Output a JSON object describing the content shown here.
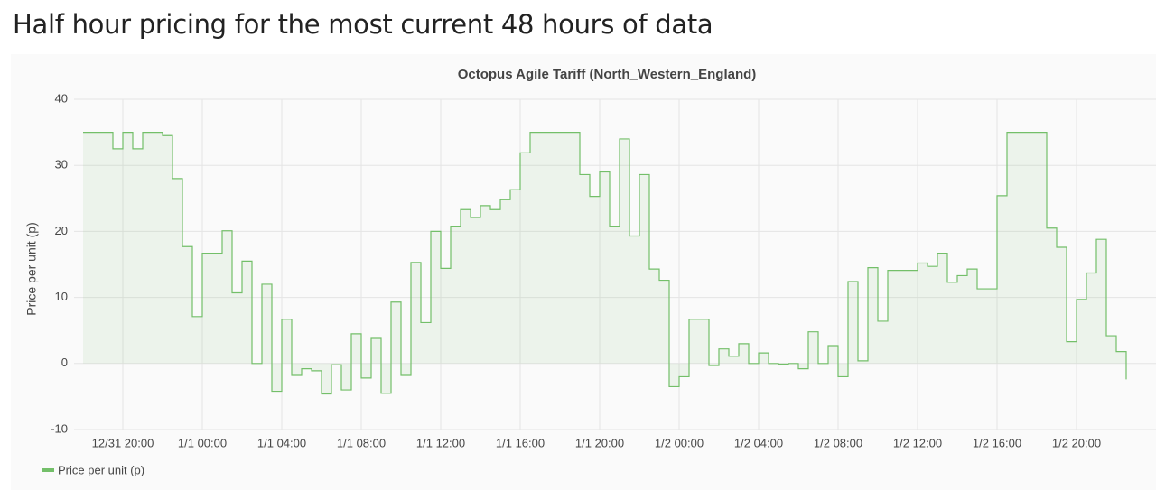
{
  "page_title": "Half hour pricing for the most current 48 hours of data",
  "chart_data": {
    "type": "line",
    "step": true,
    "fill": true,
    "title": "Octopus Agile Tariff (North_Western_England)",
    "y_label": "Price per unit (p)",
    "x": [
      "12/31 18:00",
      "12/31 18:30",
      "12/31 19:00",
      "12/31 19:30",
      "12/31 20:00",
      "12/31 20:30",
      "12/31 21:00",
      "12/31 21:30",
      "12/31 22:00",
      "12/31 22:30",
      "12/31 23:00",
      "12/31 23:30",
      "1/1 00:00",
      "1/1 00:30",
      "1/1 01:00",
      "1/1 01:30",
      "1/1 02:00",
      "1/1 02:30",
      "1/1 03:00",
      "1/1 03:30",
      "1/1 04:00",
      "1/1 04:30",
      "1/1 05:00",
      "1/1 05:30",
      "1/1 06:00",
      "1/1 06:30",
      "1/1 07:00",
      "1/1 07:30",
      "1/1 08:00",
      "1/1 08:30",
      "1/1 09:00",
      "1/1 09:30",
      "1/1 10:00",
      "1/1 10:30",
      "1/1 11:00",
      "1/1 11:30",
      "1/1 12:00",
      "1/1 12:30",
      "1/1 13:00",
      "1/1 13:30",
      "1/1 14:00",
      "1/1 14:30",
      "1/1 15:00",
      "1/1 15:30",
      "1/1 16:00",
      "1/1 16:30",
      "1/1 17:00",
      "1/1 17:30",
      "1/1 18:00",
      "1/1 18:30",
      "1/1 19:00",
      "1/1 19:30",
      "1/1 20:00",
      "1/1 20:30",
      "1/1 21:00",
      "1/1 21:30",
      "1/1 22:00",
      "1/1 22:30",
      "1/1 23:00",
      "1/1 23:30",
      "1/2 00:00",
      "1/2 00:30",
      "1/2 01:00",
      "1/2 01:30",
      "1/2 02:00",
      "1/2 02:30",
      "1/2 03:00",
      "1/2 03:30",
      "1/2 04:00",
      "1/2 04:30",
      "1/2 05:00",
      "1/2 05:30",
      "1/2 06:00",
      "1/2 06:30",
      "1/2 07:00",
      "1/2 07:30",
      "1/2 08:00",
      "1/2 08:30",
      "1/2 09:00",
      "1/2 09:30",
      "1/2 10:00",
      "1/2 10:30",
      "1/2 11:00",
      "1/2 11:30",
      "1/2 12:00",
      "1/2 12:30",
      "1/2 13:00",
      "1/2 13:30",
      "1/2 14:00",
      "1/2 14:30",
      "1/2 15:00",
      "1/2 15:30",
      "1/2 16:00",
      "1/2 16:30",
      "1/2 17:00",
      "1/2 17:30",
      "1/2 18:00",
      "1/2 18:30",
      "1/2 19:00",
      "1/2 19:30",
      "1/2 20:00",
      "1/2 20:30",
      "1/2 21:00",
      "1/2 21:30",
      "1/2 22:00",
      "1/2 22:30"
    ],
    "series": [
      {
        "name": "Price per unit (p)",
        "color": "#73bf69",
        "values": [
          35,
          35,
          35,
          32.5,
          35,
          32.5,
          35,
          35,
          34.5,
          28,
          17.7,
          7.1,
          16.7,
          16.7,
          20.1,
          10.7,
          15.5,
          0,
          12,
          -4.2,
          6.7,
          -1.8,
          -0.8,
          -1.1,
          -4.6,
          -0.2,
          -4,
          4.5,
          -2.2,
          3.8,
          -4.5,
          9.3,
          -1.8,
          15.3,
          6.2,
          20,
          14.4,
          20.8,
          23.3,
          22.1,
          23.9,
          23.3,
          24.8,
          26.3,
          31.9,
          35,
          35,
          35,
          35,
          35,
          28.6,
          25.3,
          29,
          20.8,
          34,
          19.3,
          28.6,
          14.3,
          12.6,
          -3.5,
          -2,
          6.7,
          6.7,
          -0.3,
          2.2,
          1.1,
          3,
          0,
          1.6,
          0,
          -0.1,
          0,
          -0.8,
          4.8,
          0,
          2.7,
          -2,
          12.4,
          0.4,
          14.5,
          6.4,
          14.1,
          14.1,
          14.1,
          15.2,
          14.7,
          16.7,
          12.3,
          13.3,
          14.3,
          11.3,
          11.3,
          25.4,
          35,
          35,
          35,
          35,
          20.5,
          17.6,
          3.3,
          9.7,
          13.7,
          18.8,
          4.2,
          1.8,
          -2.4
        ]
      }
    ],
    "xticks": [
      "12/31 20:00",
      "1/1 00:00",
      "1/1 04:00",
      "1/1 08:00",
      "1/1 12:00",
      "1/1 16:00",
      "1/1 20:00",
      "1/2 00:00",
      "1/2 04:00",
      "1/2 08:00",
      "1/2 12:00",
      "1/2 16:00",
      "1/2 20:00"
    ],
    "ylim": [
      -10,
      40
    ],
    "yticks": [
      -10,
      0,
      10,
      20,
      30,
      40
    ],
    "grid": true,
    "legend": "bottom-left"
  }
}
